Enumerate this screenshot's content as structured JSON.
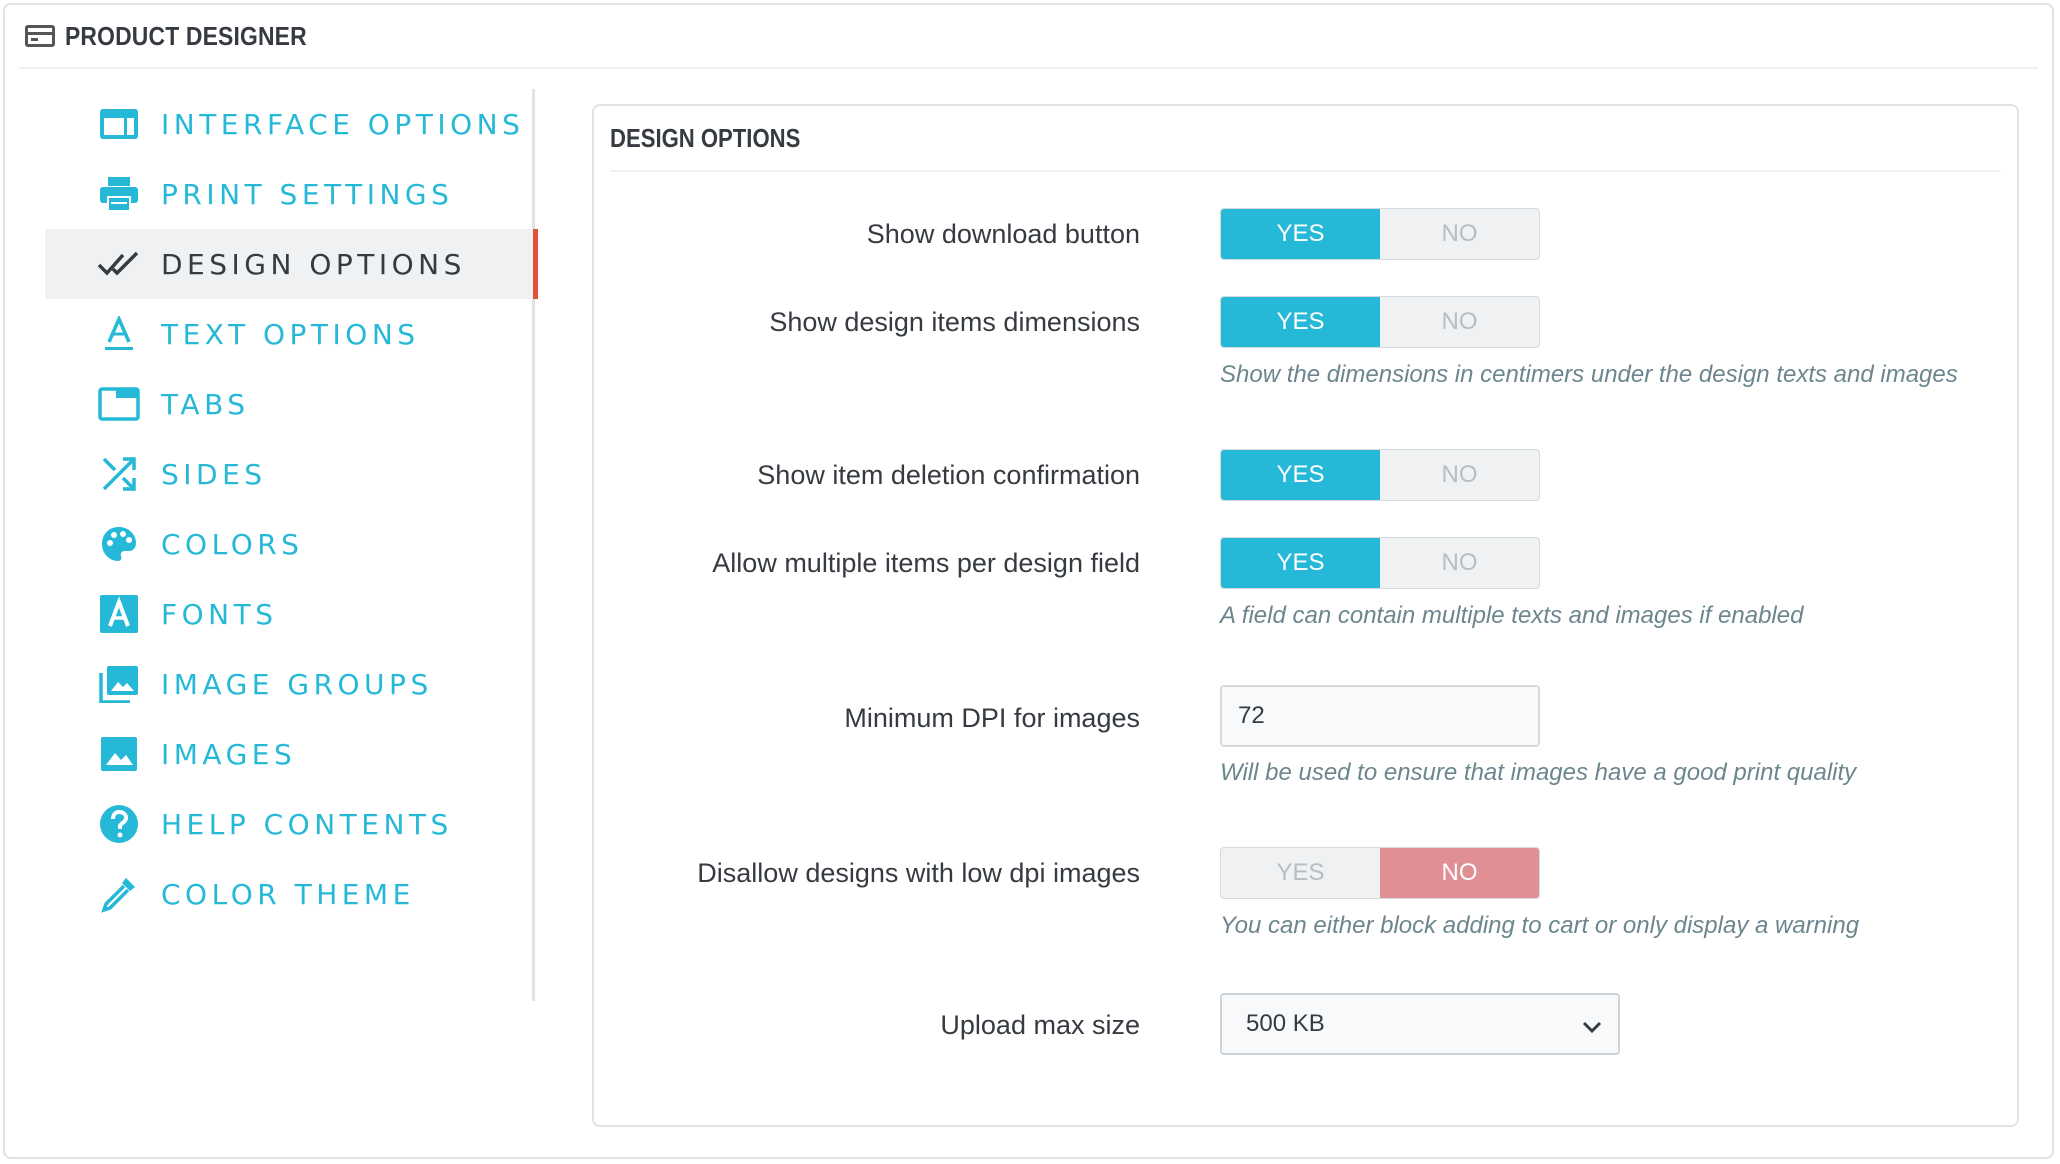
{
  "header": {
    "title": "PRODUCT DESIGNER",
    "icon": "card-icon"
  },
  "sidebar": {
    "items": [
      {
        "label": "INTERFACE OPTIONS",
        "icon": "interface-icon"
      },
      {
        "label": "PRINT SETTINGS",
        "icon": "printer-icon"
      },
      {
        "label": "DESIGN OPTIONS",
        "icon": "double-check-icon",
        "active": true
      },
      {
        "label": "TEXT OPTIONS",
        "icon": "text-icon"
      },
      {
        "label": "TABS",
        "icon": "tab-icon"
      },
      {
        "label": "SIDES",
        "icon": "shuffle-icon"
      },
      {
        "label": "COLORS",
        "icon": "palette-icon"
      },
      {
        "label": "FONTS",
        "icon": "font-icon"
      },
      {
        "label": "IMAGE GROUPS",
        "icon": "image-groups-icon"
      },
      {
        "label": "IMAGES",
        "icon": "image-icon"
      },
      {
        "label": "HELP CONTENTS",
        "icon": "help-icon"
      },
      {
        "label": "COLOR THEME",
        "icon": "eyedropper-icon"
      }
    ],
    "accent_color": "#25b9d7",
    "active_border_color": "#e0513e"
  },
  "card": {
    "title": "DESIGN OPTIONS",
    "yes_label": "YES",
    "no_label": "NO",
    "fields": {
      "show_download": {
        "label": "Show download button",
        "value": "YES"
      },
      "show_dimensions": {
        "label": "Show design items dimensions",
        "value": "YES",
        "hint": "Show the dimensions in centimers under the design texts and images"
      },
      "show_delete_confirm": {
        "label": "Show item deletion confirmation",
        "value": "YES"
      },
      "allow_multiple": {
        "label": "Allow multiple items per design field",
        "value": "YES",
        "hint": "A field can contain multiple texts and images if enabled"
      },
      "min_dpi": {
        "label": "Minimum DPI for images",
        "value": "72",
        "hint": "Will be used to ensure that images have a good print quality"
      },
      "disallow_low_dpi": {
        "label": "Disallow designs with low dpi images",
        "value": "NO",
        "hint": "You can either block adding to cart or only display a warning"
      },
      "upload_max": {
        "label": "Upload max size",
        "value": "500 KB"
      }
    }
  },
  "colors": {
    "yes_on": "#25b9d7",
    "no_on": "#e08f95"
  }
}
